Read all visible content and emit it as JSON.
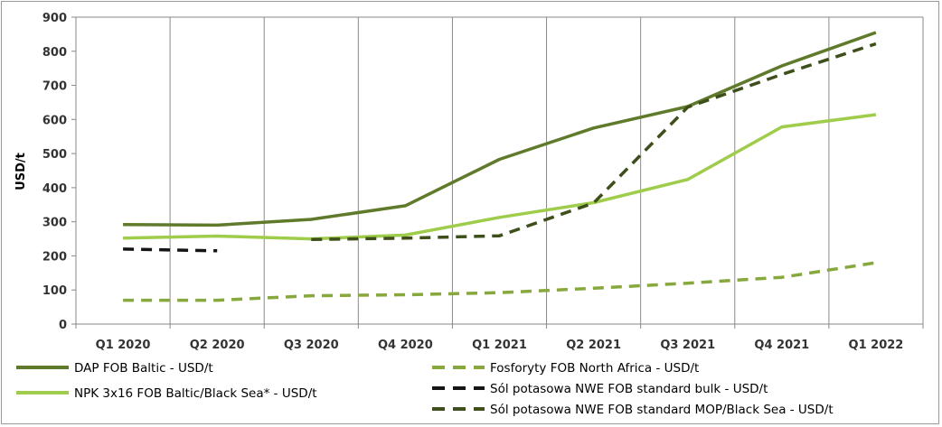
{
  "chart_data": {
    "type": "line",
    "title": "",
    "xlabel": "",
    "ylabel": "USD/t",
    "ylim": [
      0,
      900
    ],
    "yticks": [
      0,
      100,
      200,
      300,
      400,
      500,
      600,
      700,
      800,
      900
    ],
    "categories": [
      "Q1 2020",
      "Q2 2020",
      "Q3 2020",
      "Q4 2020",
      "Q1 2021",
      "Q2 2021",
      "Q3 2021",
      "Q4 2021",
      "Q1 2022"
    ],
    "grid": {
      "x": true,
      "y": false
    },
    "legend_position": "bottom",
    "series": [
      {
        "key": "dap",
        "name": "DAP FOB Baltic - USD/t",
        "color": "#5f7a2a",
        "dash": "solid",
        "values": [
          292,
          290,
          307,
          347,
          483,
          575,
          638,
          757,
          855
        ]
      },
      {
        "key": "npk",
        "name": "NPK 3x16 FOB Baltic/Black Sea* - USD/t",
        "color": "#9fcc4a",
        "dash": "solid",
        "values": [
          252,
          258,
          250,
          261,
          313,
          356,
          424,
          578,
          614
        ]
      },
      {
        "key": "fos",
        "name": "Fosforyty FOB North Africa - USD/t",
        "color": "#86a83c",
        "dash": "dashed",
        "values": [
          70,
          70,
          83,
          86,
          92,
          105,
          120,
          137,
          180
        ]
      },
      {
        "key": "bulk",
        "name": "Sól potasowa  NWE FOB standard  bulk - USD/t",
        "color": "#141414",
        "dash": "dashed",
        "values": [
          220,
          215,
          null,
          null,
          null,
          null,
          null,
          null,
          null
        ]
      },
      {
        "key": "mop",
        "name": "Sól potasowa  NWE FOB standard  MOP/Black Sea  - USD/t",
        "color": "#3e4f1c",
        "dash": "dashed",
        "values": [
          null,
          null,
          248,
          252,
          259,
          355,
          636,
          732,
          822
        ]
      }
    ]
  }
}
